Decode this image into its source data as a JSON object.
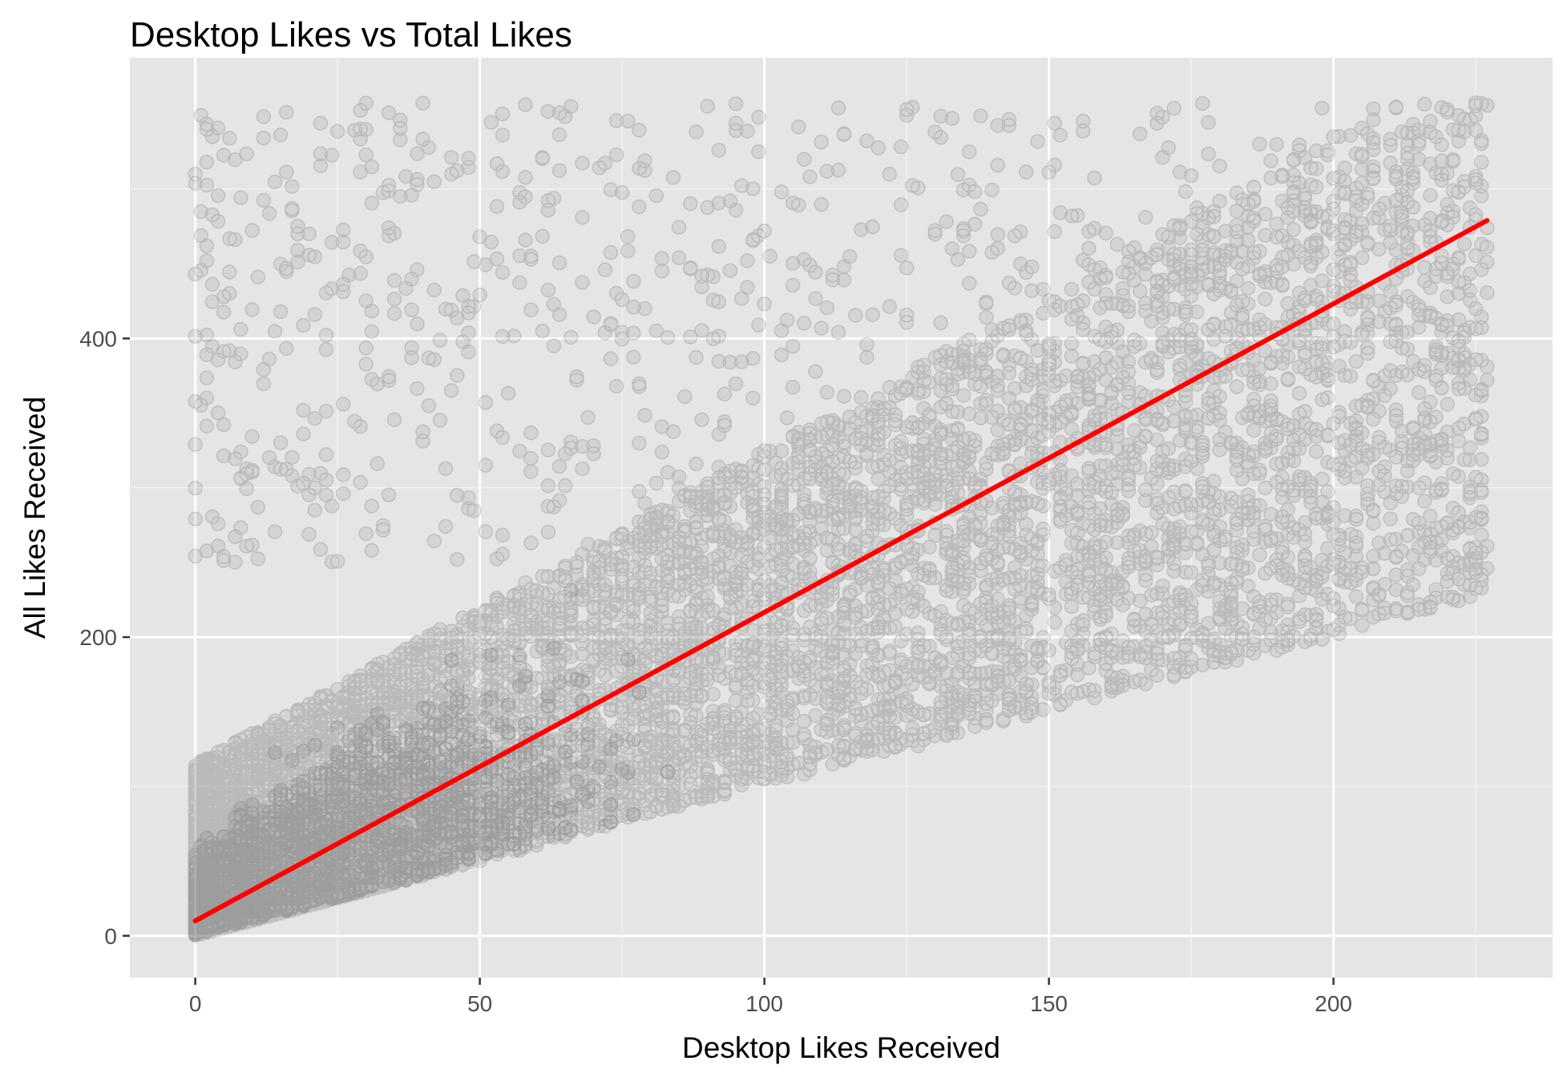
{
  "chart_data": {
    "type": "scatter",
    "title": "Desktop Likes vs Total Likes",
    "xlabel": "Desktop Likes Received",
    "ylabel": "All Likes Received",
    "xlim": [
      -11.5,
      238.5
    ],
    "ylim": [
      -28,
      588
    ],
    "x_ticks": [
      0,
      50,
      100,
      150,
      200
    ],
    "x_tick_labels": [
      "0",
      "50",
      "100",
      "150",
      "200"
    ],
    "y_ticks": [
      0,
      200,
      400
    ],
    "y_tick_labels": [
      "0",
      "200",
      "400"
    ],
    "x_minor_ticks": [
      25,
      75,
      125,
      175,
      225
    ],
    "y_minor_ticks": [
      100,
      300,
      500
    ],
    "grid": true,
    "legend": "none",
    "series": [
      {
        "kind": "points",
        "color": "#000000",
        "opacity": 0.08,
        "approx_point_count": 60000,
        "x_range": [
          0,
          227
        ],
        "y_range": [
          0,
          558
        ],
        "description_of_extent": {
          "lower_bound_slope": 1.0,
          "x_max": 227,
          "y_max": 558
        }
      },
      {
        "kind": "fit-line",
        "color": "#ff0000",
        "x": [
          0,
          227
        ],
        "y": [
          10,
          479
        ]
      }
    ]
  },
  "colors": {
    "panel_background": "#e5e5e5",
    "grid_major": "#ffffff",
    "grid_minor": "#f2f2f2",
    "tick_text": "#4d4d4d",
    "fit_line": "#ff0000",
    "points": "#000000"
  }
}
